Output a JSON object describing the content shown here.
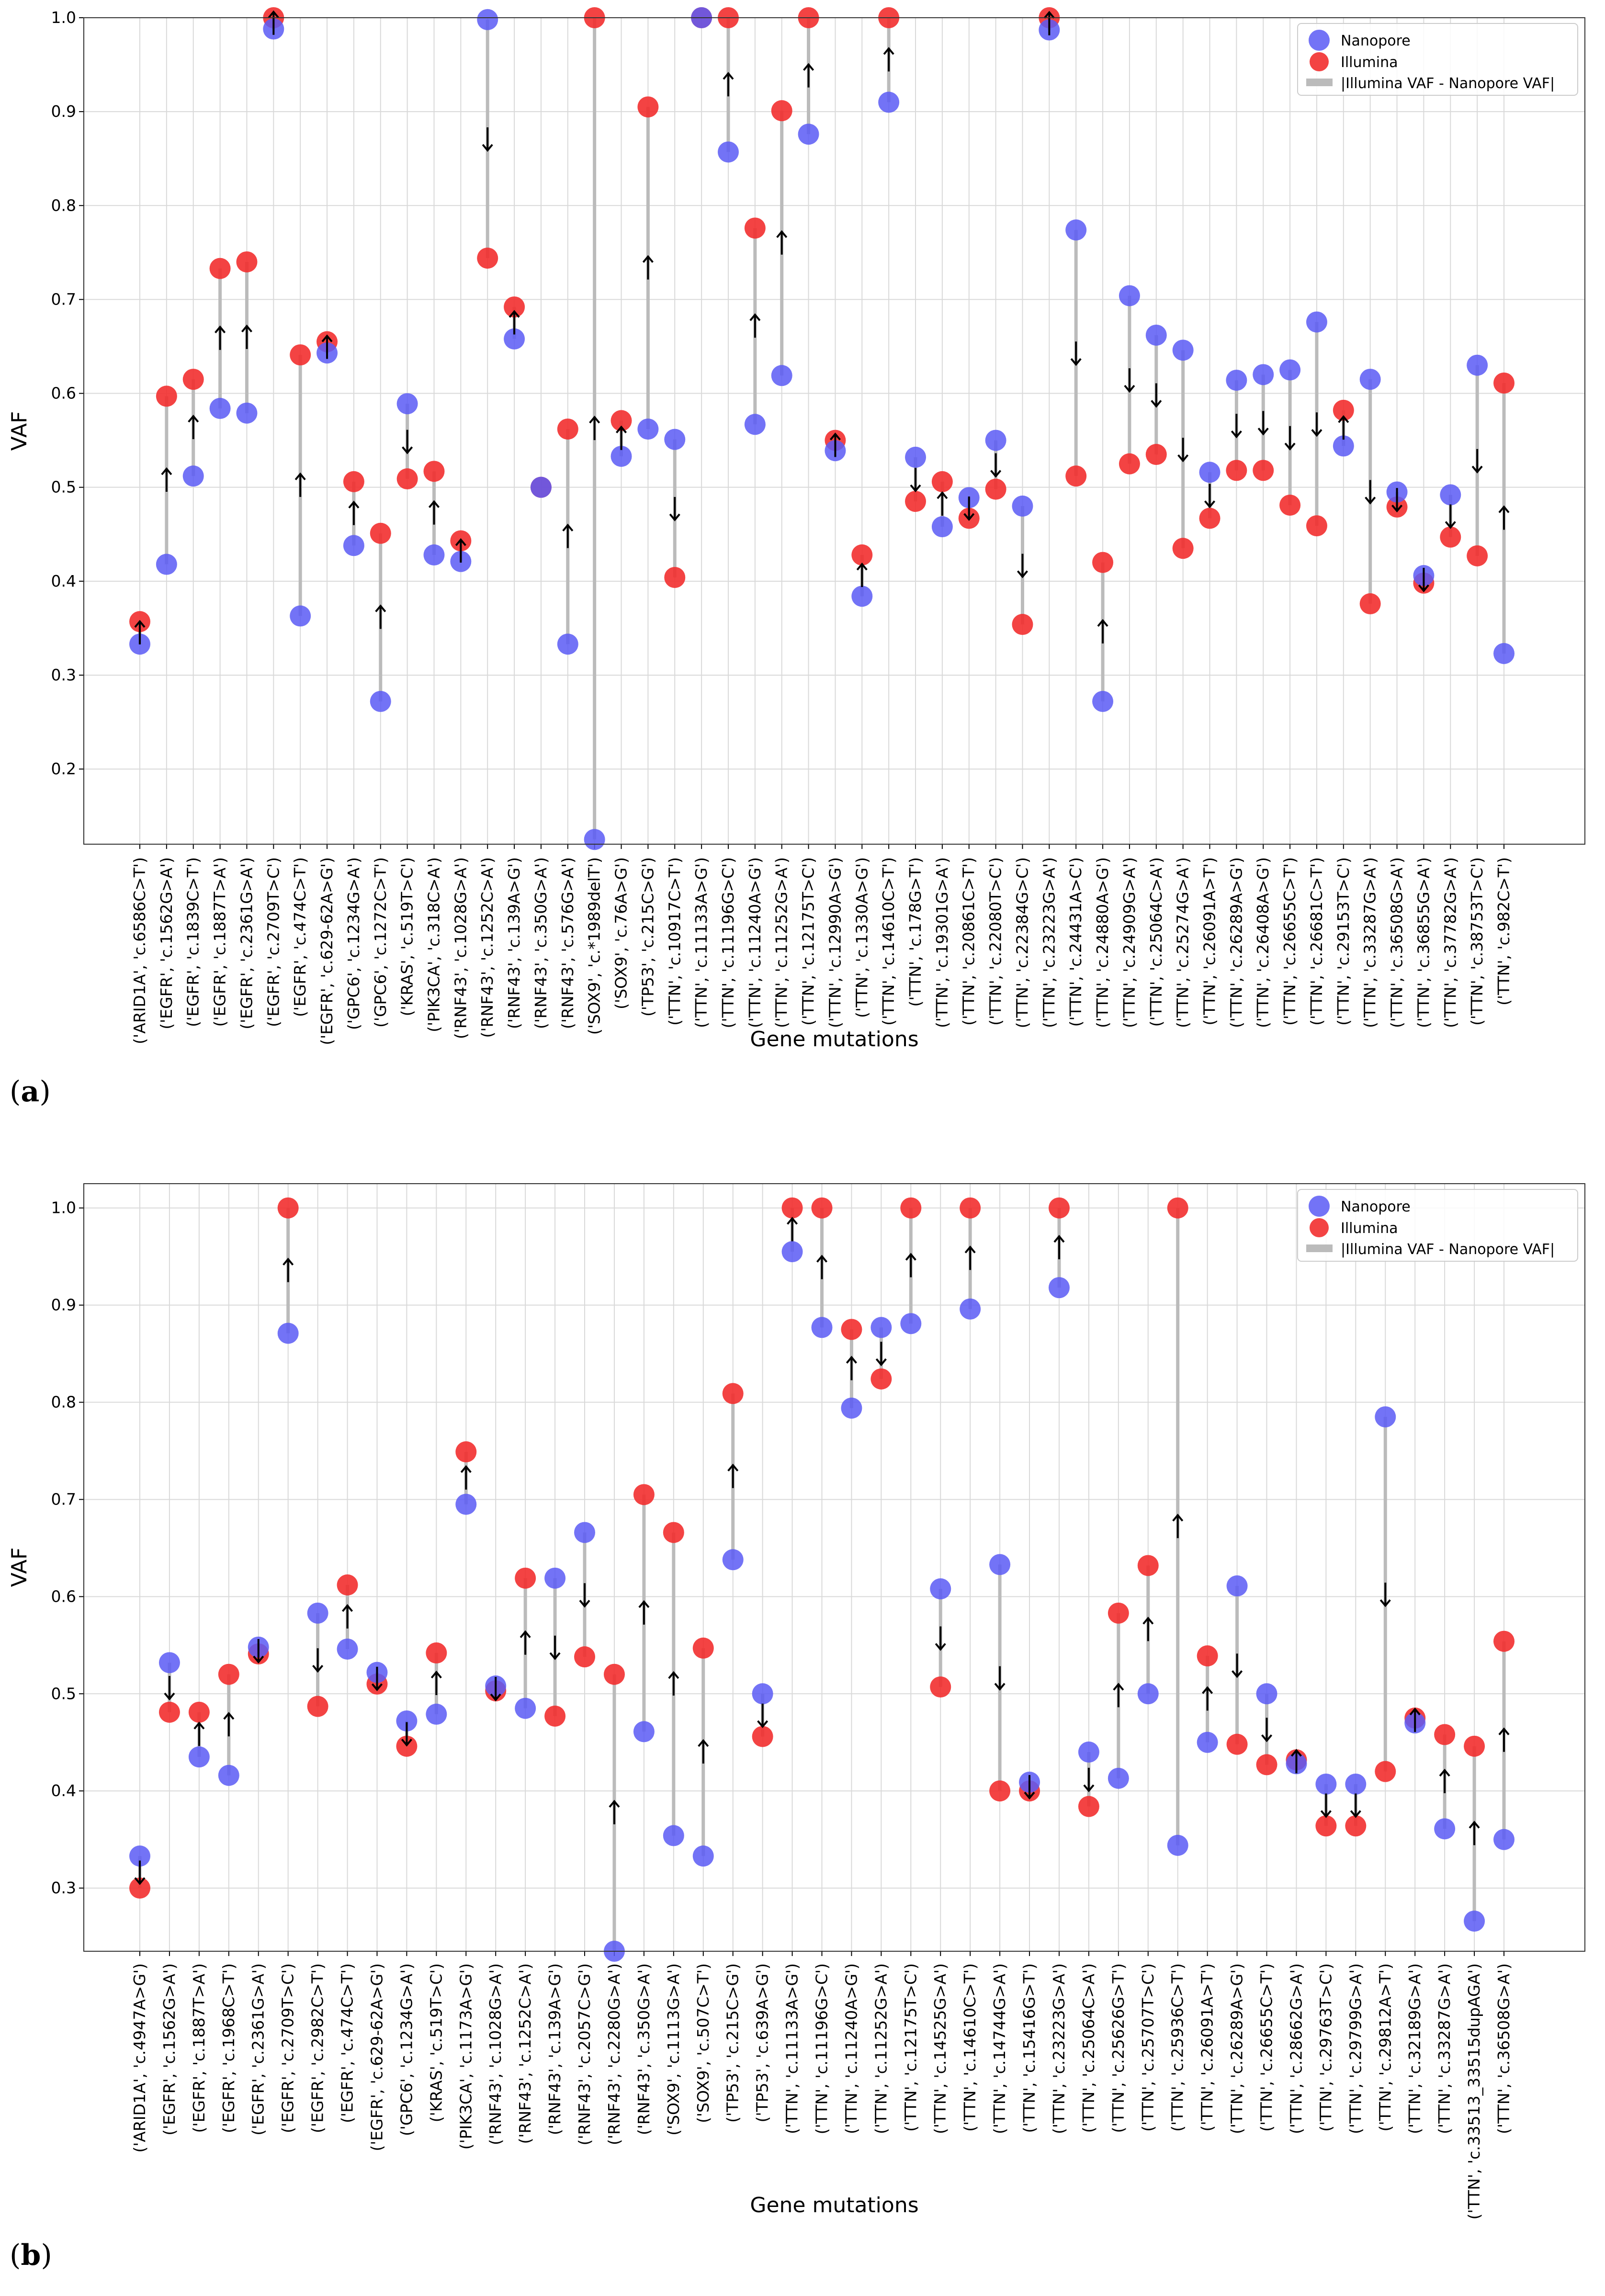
{
  "chart_data": [
    {
      "panel": "(a)",
      "type": "scatter",
      "xlabel": "Gene mutations",
      "ylabel": "VAF",
      "ylim": [
        0.12,
        1.0
      ],
      "yticks": [
        0.2,
        0.3,
        0.4,
        0.5,
        0.6,
        0.7,
        0.8,
        0.9,
        1.0
      ],
      "grid": true,
      "legend": {
        "position": "top-right",
        "entries": [
          "Nanopore",
          "Illumina",
          "|Illumina VAF - Nanopore VAF|"
        ]
      },
      "colors": {
        "nanopore": "#5a5af5",
        "illumina": "#f22f2f",
        "difference": "#bbbbbb"
      },
      "categories": [
        "('ARID1A', 'c.6586C>T')",
        "('EGFR', 'c.1562G>A')",
        "('EGFR', 'c.1839C>T')",
        "('EGFR', 'c.1887T>A')",
        "('EGFR', 'c.2361G>A')",
        "('EGFR', 'c.2709T>C')",
        "('EGFR', 'c.474C>T')",
        "('EGFR', 'c.629-62A>G')",
        "('GPC6', 'c.1234G>A')",
        "('GPC6', 'c.1272C>T')",
        "('KRAS', 'c.519T>C')",
        "('PIK3CA', 'c.318C>A')",
        "('RNF43', 'c.1028G>A')",
        "('RNF43', 'c.1252C>A')",
        "('RNF43', 'c.139A>G')",
        "('RNF43', 'c.350G>A')",
        "('RNF43', 'c.576G>A')",
        "('SOX9', 'c.*1989delT')",
        "('SOX9', 'c.76A>G')",
        "('TP53', 'c.215C>G')",
        "('TTN', 'c.10917C>T')",
        "('TTN', 'c.11133A>G')",
        "('TTN', 'c.11196G>C')",
        "('TTN', 'c.11240A>G')",
        "('TTN', 'c.11252G>A')",
        "('TTN', 'c.12175T>C')",
        "('TTN', 'c.12990A>G')",
        "('TTN', 'c.1330A>G')",
        "('TTN', 'c.14610C>T')",
        "('TTN', 'c.178G>T')",
        "('TTN', 'c.19301G>A')",
        "('TTN', 'c.20861C>T')",
        "('TTN', 'c.22080T>C')",
        "('TTN', 'c.22384G>C')",
        "('TTN', 'c.23223G>A')",
        "('TTN', 'c.24431A>C')",
        "('TTN', 'c.24880A>G')",
        "('TTN', 'c.24909G>A')",
        "('TTN', 'c.25064C>A')",
        "('TTN', 'c.25274G>A')",
        "('TTN', 'c.26091A>T')",
        "('TTN', 'c.26289A>G')",
        "('TTN', 'c.26408A>G')",
        "('TTN', 'c.26655C>T')",
        "('TTN', 'c.26681C>T')",
        "('TTN', 'c.29153T>C')",
        "('TTN', 'c.33287G>A')",
        "('TTN', 'c.36508G>A')",
        "('TTN', 'c.36855G>A')",
        "('TTN', 'c.37782G>A')",
        "('TTN', 'c.38753T>C')",
        "('TTN', 'c.982C>T')"
      ],
      "series": [
        {
          "name": "Nanopore",
          "values": [
            0.333,
            0.418,
            0.512,
            0.584,
            0.579,
            0.988,
            0.363,
            0.643,
            0.438,
            0.272,
            0.589,
            0.428,
            0.421,
            0.998,
            0.658,
            0.5,
            0.333,
            0.125,
            0.533,
            0.562,
            0.551,
            1.0,
            0.857,
            0.567,
            0.619,
            0.876,
            0.539,
            0.384,
            0.91,
            0.532,
            0.458,
            0.489,
            0.55,
            0.48,
            0.987,
            0.774,
            0.272,
            0.704,
            0.662,
            0.646,
            0.516,
            0.614,
            0.62,
            0.625,
            0.676,
            0.544,
            0.615,
            0.495,
            0.406,
            0.492,
            0.63,
            0.323
          ]
        },
        {
          "name": "Illumina",
          "values": [
            0.357,
            0.597,
            0.615,
            0.733,
            0.74,
            1.0,
            0.641,
            0.655,
            0.506,
            0.451,
            0.509,
            0.517,
            0.443,
            0.744,
            0.692,
            0.5,
            0.562,
            1.0,
            0.571,
            0.905,
            0.404,
            1.0,
            1.0,
            0.776,
            0.901,
            1.0,
            0.55,
            0.428,
            1.0,
            0.485,
            0.506,
            0.467,
            0.498,
            0.354,
            1.0,
            0.512,
            0.42,
            0.525,
            0.535,
            0.435,
            0.467,
            0.518,
            0.518,
            0.481,
            0.459,
            0.582,
            0.376,
            0.479,
            0.398,
            0.447,
            0.427,
            0.611
          ]
        }
      ]
    },
    {
      "panel": "(b)",
      "type": "scatter",
      "xlabel": "Gene mutations",
      "ylabel": "VAF",
      "ylim": [
        0.235,
        1.025
      ],
      "yticks": [
        0.3,
        0.4,
        0.5,
        0.6,
        0.7,
        0.8,
        0.9,
        1.0
      ],
      "grid": true,
      "legend": {
        "position": "top-right",
        "entries": [
          "Nanopore",
          "Illumina",
          "|Illumina VAF - Nanopore VAF|"
        ]
      },
      "colors": {
        "nanopore": "#5a5af5",
        "illumina": "#f22f2f",
        "difference": "#bbbbbb"
      },
      "categories": [
        "('ARID1A', 'c.4947A>G')",
        "('EGFR', 'c.1562G>A')",
        "('EGFR', 'c.1887T>A')",
        "('EGFR', 'c.1968C>T')",
        "('EGFR', 'c.2361G>A')",
        "('EGFR', 'c.2709T>C')",
        "('EGFR', 'c.2982C>T')",
        "('EGFR', 'c.474C>T')",
        "('EGFR', 'c.629-62A>G')",
        "('GPC6', 'c.1234G>A')",
        "('KRAS', 'c.519T>C')",
        "('PIK3CA', 'c.1173A>G')",
        "('RNF43', 'c.1028G>A')",
        "('RNF43', 'c.1252C>A')",
        "('RNF43', 'c.139A>G')",
        "('RNF43', 'c.2057C>G')",
        "('RNF43', 'c.2280G>A')",
        "('RNF43', 'c.350G>A')",
        "('SOX9', 'c.1113G>A')",
        "('SOX9', 'c.507C>T')",
        "('TP53', 'c.215C>G')",
        "('TP53', 'c.639A>G')",
        "('TTN', 'c.11133A>G')",
        "('TTN', 'c.11196G>C')",
        "('TTN', 'c.11240A>G')",
        "('TTN', 'c.11252G>A')",
        "('TTN', 'c.12175T>C')",
        "('TTN', 'c.14525G>A')",
        "('TTN', 'c.14610C>T')",
        "('TTN', 'c.14744G>A')",
        "('TTN', 'c.15416G>T')",
        "('TTN', 'c.23223G>A')",
        "('TTN', 'c.25064C>A')",
        "('TTN', 'c.25626G>T')",
        "('TTN', 'c.25707T>C')",
        "('TTN', 'c.25936C>T')",
        "('TTN', 'c.26091A>T')",
        "('TTN', 'c.26289A>G')",
        "('TTN', 'c.26655C>T')",
        "('TTN', 'c.28662G>A')",
        "('TTN', 'c.29763T>C')",
        "('TTN', 'c.29799G>A')",
        "('TTN', 'c.29812A>T')",
        "('TTN', 'c.32189G>A')",
        "('TTN', 'c.33287G>A')",
        "('TTN', 'c.33513_33515dupAGA')",
        "('TTN', 'c.36508G>A')"
      ],
      "series": [
        {
          "name": "Nanopore",
          "values": [
            0.333,
            0.532,
            0.435,
            0.416,
            0.548,
            0.871,
            0.583,
            0.546,
            0.522,
            0.472,
            0.479,
            0.695,
            0.508,
            0.485,
            0.619,
            0.666,
            0.235,
            0.461,
            0.354,
            0.333,
            0.638,
            0.5,
            0.955,
            0.877,
            0.794,
            0.877,
            0.881,
            0.608,
            0.896,
            0.633,
            0.409,
            0.918,
            0.44,
            0.413,
            0.5,
            0.344,
            0.45,
            0.611,
            0.5,
            0.428,
            0.407,
            0.407,
            0.785,
            0.47,
            0.361,
            0.266,
            0.35
          ]
        },
        {
          "name": "Illumina",
          "values": [
            0.3,
            0.481,
            0.481,
            0.52,
            0.541,
            1.0,
            0.487,
            0.612,
            0.51,
            0.446,
            0.542,
            0.749,
            0.503,
            0.619,
            0.477,
            0.538,
            0.52,
            0.705,
            0.666,
            0.547,
            0.809,
            0.456,
            1.0,
            1.0,
            0.875,
            0.824,
            1.0,
            0.507,
            1.0,
            0.4,
            0.4,
            1.0,
            0.384,
            0.583,
            0.632,
            1.0,
            0.539,
            0.448,
            0.427,
            0.432,
            0.364,
            0.364,
            0.42,
            0.475,
            0.458,
            0.446,
            0.554
          ]
        }
      ]
    }
  ]
}
